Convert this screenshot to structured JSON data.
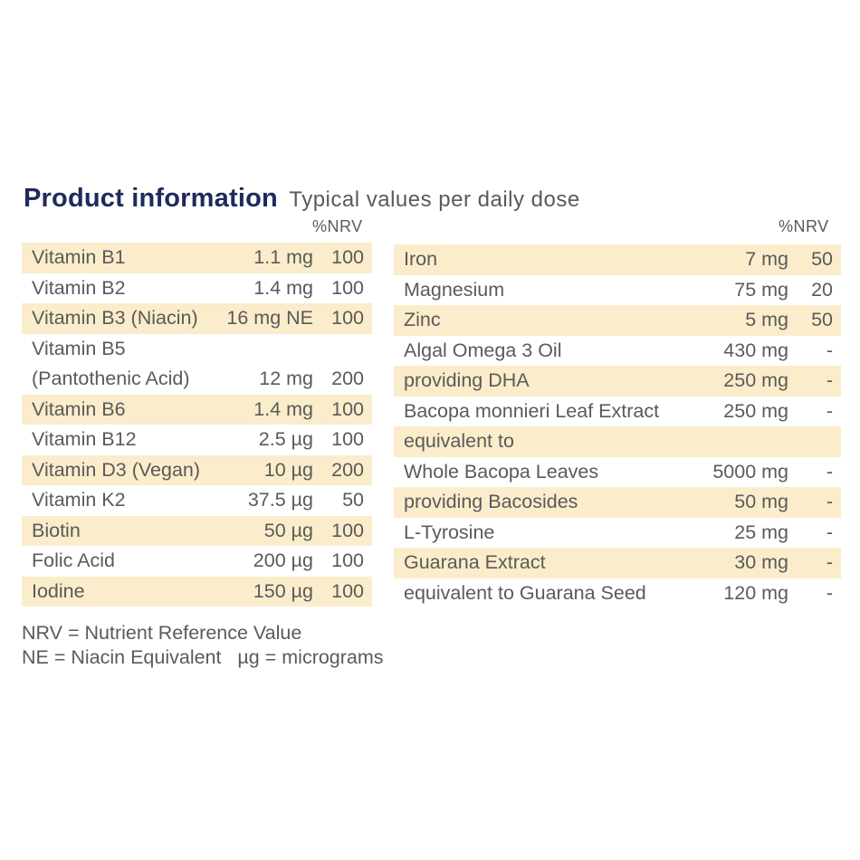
{
  "header": {
    "title": "Product information",
    "subtitle": "Typical values per daily dose"
  },
  "nrv_label": "%NRV",
  "left_table": [
    {
      "name": "Vitamin B1",
      "amount": "1.1 mg",
      "nrv": "100",
      "shade": true
    },
    {
      "name": "Vitamin B2",
      "amount": "1.4 mg",
      "nrv": "100",
      "shade": false
    },
    {
      "name": "Vitamin B3 (Niacin)",
      "amount": "16 mg NE",
      "nrv": "100",
      "shade": true
    },
    {
      "name": "Vitamin B5",
      "amount": "",
      "nrv": "",
      "shade": false
    },
    {
      "name": "(Pantothenic Acid)",
      "amount": "12 mg",
      "nrv": "200",
      "shade": false
    },
    {
      "name": "Vitamin B6",
      "amount": "1.4 mg",
      "nrv": "100",
      "shade": true
    },
    {
      "name": "Vitamin B12",
      "amount": "2.5 µg",
      "nrv": "100",
      "shade": false
    },
    {
      "name": "Vitamin D3 (Vegan)",
      "amount": "10 µg",
      "nrv": "200",
      "shade": true
    },
    {
      "name": "Vitamin K2",
      "amount": "37.5 µg",
      "nrv": "50",
      "shade": false
    },
    {
      "name": "Biotin",
      "amount": "50 µg",
      "nrv": "100",
      "shade": true
    },
    {
      "name": "Folic Acid",
      "amount": "200 µg",
      "nrv": "100",
      "shade": false
    },
    {
      "name": "Iodine",
      "amount": "150 µg",
      "nrv": "100",
      "shade": true
    }
  ],
  "right_table": [
    {
      "name": "Iron",
      "amount": "7 mg",
      "nrv": "50",
      "shade": true
    },
    {
      "name": "Magnesium",
      "amount": "75 mg",
      "nrv": "20",
      "shade": false
    },
    {
      "name": "Zinc",
      "amount": "5 mg",
      "nrv": "50",
      "shade": true
    },
    {
      "name": "Algal Omega 3 Oil",
      "amount": "430 mg",
      "nrv": "-",
      "shade": false
    },
    {
      "name": "providing DHA",
      "amount": "250 mg",
      "nrv": "-",
      "shade": true
    },
    {
      "name": "Bacopa monnieri Leaf Extract",
      "amount": "250 mg",
      "nrv": "-",
      "shade": false
    },
    {
      "name": "equivalent to",
      "amount": "",
      "nrv": "",
      "shade": true
    },
    {
      "name": "Whole Bacopa Leaves",
      "amount": "5000 mg",
      "nrv": "-",
      "shade": false
    },
    {
      "name": "providing Bacosides",
      "amount": "50 mg",
      "nrv": "-",
      "shade": true
    },
    {
      "name": "L-Tyrosine",
      "amount": "25 mg",
      "nrv": "-",
      "shade": false
    },
    {
      "name": "Guarana Extract",
      "amount": "30 mg",
      "nrv": "-",
      "shade": true
    },
    {
      "name": "equivalent to Guarana Seed",
      "amount": "120 mg",
      "nrv": "-",
      "shade": false
    }
  ],
  "footer": {
    "line1": "NRV = Nutrient Reference Value",
    "line2": "NE = Niacin Equivalent   µg = micrograms"
  }
}
